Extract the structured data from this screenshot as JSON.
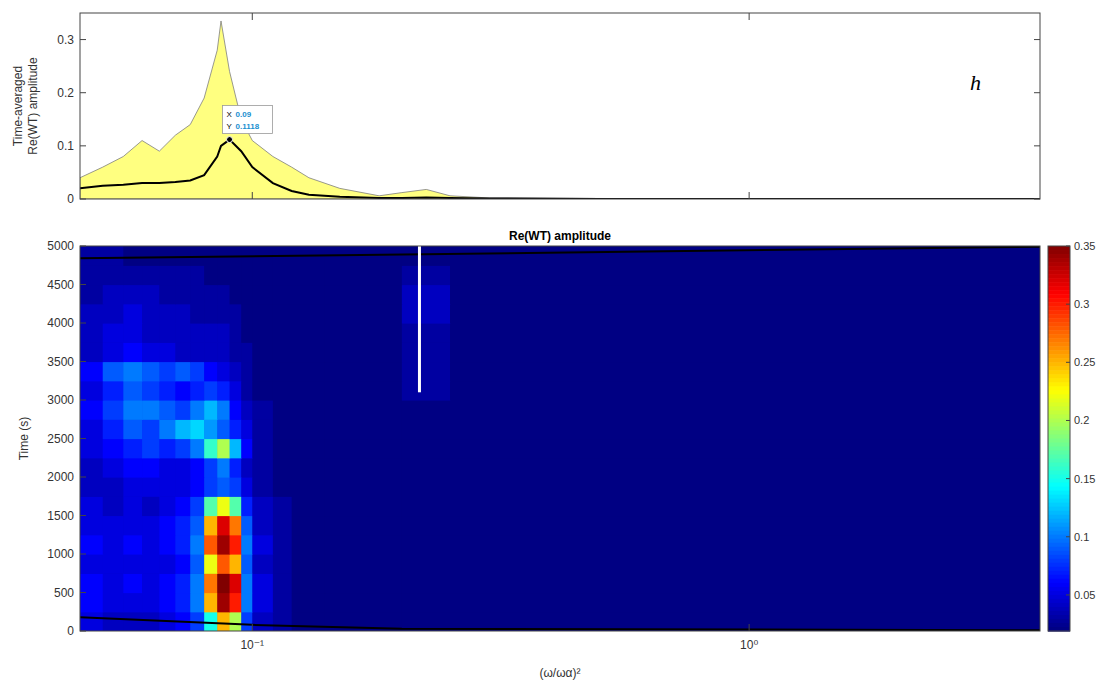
{
  "chart_data": [
    {
      "type": "area",
      "panel_label": "h",
      "y_label": "Time-averaged Re(WT) amplitude",
      "log": "x",
      "tick_labels": "y",
      "xlim": [
        0.045,
        3.85
      ],
      "ylim": [
        0,
        0.35
      ],
      "xticks": [
        {
          "value": 0.1,
          "label": "10⁻¹"
        },
        {
          "value": 1,
          "label": "10⁰"
        }
      ],
      "yticks": [
        0,
        0.1,
        0.2,
        0.3
      ],
      "x": [
        0.045,
        0.05,
        0.055,
        0.06,
        0.065,
        0.07,
        0.075,
        0.08,
        0.085,
        0.0865,
        0.09,
        0.095,
        0.1,
        0.11,
        0.12,
        0.13,
        0.15,
        0.18,
        0.2,
        0.224,
        0.25,
        0.3,
        0.5,
        1,
        2,
        3.85
      ],
      "series": [
        {
          "type": "area",
          "color": "#ffff80",
          "values": [
            0.04,
            0.06,
            0.08,
            0.11,
            0.09,
            0.12,
            0.14,
            0.19,
            0.28,
            0.335,
            0.24,
            0.15,
            0.11,
            0.08,
            0.06,
            0.04,
            0.02,
            0.006,
            0.012,
            0.018,
            0.006,
            0.002,
            0.001,
            0,
            0,
            0
          ]
        },
        {
          "type": "line",
          "color": "#000000",
          "values": [
            0.02,
            0.025,
            0.027,
            0.03,
            0.03,
            0.032,
            0.035,
            0.045,
            0.08,
            0.1,
            0.1118,
            0.09,
            0.06,
            0.03,
            0.015,
            0.008,
            0.004,
            0.002,
            0.002,
            0.003,
            0.002,
            0.001,
            0,
            0,
            0,
            0
          ]
        }
      ],
      "annotation": {
        "x": 0.09,
        "y": 0.1118,
        "x_text": "X",
        "y_text": "Y"
      }
    },
    {
      "type": "heatmap",
      "title": "Re(WT) amplitude",
      "x_label": "(ω/ωα)²",
      "y_label": "Time (s)",
      "log": "x",
      "xlim": [
        0.045,
        3.85
      ],
      "ylim": [
        0,
        5000
      ],
      "xticks": [
        {
          "value": 0.1,
          "label": "10⁻¹"
        },
        {
          "value": 1,
          "label": "10⁰"
        }
      ],
      "yticks": [
        0,
        500,
        1000,
        1500,
        2000,
        2500,
        3000,
        3500,
        4000,
        4500,
        5000
      ],
      "x_edges": [
        0.045,
        0.05,
        0.055,
        0.06,
        0.065,
        0.07,
        0.075,
        0.08,
        0.085,
        0.09,
        0.095,
        0.1,
        0.11,
        0.12,
        0.14,
        0.17,
        0.2,
        0.25,
        3.85
      ],
      "y_edges": [
        0,
        250,
        500,
        750,
        1000,
        1250,
        1500,
        1750,
        2000,
        2250,
        2500,
        2750,
        3000,
        3250,
        3500,
        3750,
        4000,
        4250,
        4500,
        4750,
        5000
      ],
      "cells": [
        [
          0.05,
          0.04,
          0.04,
          0.04,
          0.05,
          0.06,
          0.08,
          0.15,
          0.25,
          0.2,
          0.08,
          0.04,
          0.03,
          0.02,
          0.02,
          0.02,
          0.02,
          0.02
        ],
        [
          0.06,
          0.05,
          0.05,
          0.05,
          0.06,
          0.07,
          0.1,
          0.25,
          0.34,
          0.3,
          0.1,
          0.05,
          0.03,
          0.02,
          0.02,
          0.02,
          0.02,
          0.02
        ],
        [
          0.06,
          0.05,
          0.06,
          0.05,
          0.06,
          0.07,
          0.1,
          0.27,
          0.35,
          0.32,
          0.1,
          0.05,
          0.03,
          0.02,
          0.02,
          0.02,
          0.02,
          0.02
        ],
        [
          0.05,
          0.05,
          0.05,
          0.05,
          0.05,
          0.06,
          0.09,
          0.22,
          0.28,
          0.25,
          0.09,
          0.04,
          0.03,
          0.02,
          0.02,
          0.02,
          0.02,
          0.02
        ],
        [
          0.06,
          0.05,
          0.06,
          0.05,
          0.06,
          0.07,
          0.1,
          0.28,
          0.34,
          0.3,
          0.1,
          0.05,
          0.03,
          0.02,
          0.02,
          0.02,
          0.02,
          0.02
        ],
        [
          0.05,
          0.05,
          0.05,
          0.05,
          0.06,
          0.07,
          0.09,
          0.25,
          0.32,
          0.27,
          0.09,
          0.04,
          0.03,
          0.02,
          0.02,
          0.02,
          0.02,
          0.02
        ],
        [
          0.05,
          0.04,
          0.05,
          0.04,
          0.05,
          0.06,
          0.08,
          0.17,
          0.22,
          0.17,
          0.07,
          0.04,
          0.03,
          0.02,
          0.02,
          0.02,
          0.02,
          0.02
        ],
        [
          0.04,
          0.04,
          0.05,
          0.05,
          0.05,
          0.05,
          0.06,
          0.08,
          0.09,
          0.08,
          0.05,
          0.03,
          0.02,
          0.02,
          0.02,
          0.02,
          0.02,
          0.02
        ],
        [
          0.04,
          0.05,
          0.06,
          0.06,
          0.05,
          0.05,
          0.06,
          0.08,
          0.1,
          0.07,
          0.04,
          0.03,
          0.02,
          0.02,
          0.02,
          0.02,
          0.02,
          0.02
        ],
        [
          0.05,
          0.06,
          0.07,
          0.08,
          0.07,
          0.08,
          0.1,
          0.16,
          0.2,
          0.12,
          0.06,
          0.03,
          0.02,
          0.02,
          0.02,
          0.02,
          0.02,
          0.02
        ],
        [
          0.05,
          0.07,
          0.09,
          0.08,
          0.1,
          0.12,
          0.13,
          0.11,
          0.09,
          0.07,
          0.05,
          0.03,
          0.02,
          0.02,
          0.02,
          0.02,
          0.02,
          0.02
        ],
        [
          0.06,
          0.08,
          0.1,
          0.1,
          0.09,
          0.08,
          0.1,
          0.12,
          0.1,
          0.06,
          0.04,
          0.03,
          0.02,
          0.02,
          0.02,
          0.02,
          0.02,
          0.02
        ],
        [
          0.05,
          0.07,
          0.09,
          0.08,
          0.07,
          0.06,
          0.07,
          0.08,
          0.07,
          0.05,
          0.03,
          0.02,
          0.02,
          0.02,
          0.02,
          0.02,
          0.03,
          0.02
        ],
        [
          0.06,
          0.09,
          0.1,
          0.09,
          0.08,
          0.09,
          0.08,
          0.06,
          0.05,
          0.04,
          0.03,
          0.02,
          0.02,
          0.02,
          0.02,
          0.02,
          0.03,
          0.02
        ],
        [
          0.04,
          0.05,
          0.06,
          0.05,
          0.05,
          0.04,
          0.04,
          0.04,
          0.04,
          0.03,
          0.03,
          0.02,
          0.02,
          0.02,
          0.02,
          0.02,
          0.03,
          0.02
        ],
        [
          0.04,
          0.05,
          0.05,
          0.04,
          0.04,
          0.04,
          0.04,
          0.04,
          0.04,
          0.03,
          0.02,
          0.02,
          0.02,
          0.02,
          0.02,
          0.02,
          0.03,
          0.02
        ],
        [
          0.04,
          0.04,
          0.05,
          0.04,
          0.04,
          0.04,
          0.03,
          0.03,
          0.03,
          0.03,
          0.02,
          0.02,
          0.02,
          0.02,
          0.02,
          0.02,
          0.04,
          0.02
        ],
        [
          0.03,
          0.04,
          0.04,
          0.04,
          0.03,
          0.03,
          0.03,
          0.03,
          0.03,
          0.02,
          0.02,
          0.02,
          0.02,
          0.02,
          0.02,
          0.02,
          0.04,
          0.02
        ],
        [
          0.03,
          0.03,
          0.03,
          0.03,
          0.03,
          0.03,
          0.03,
          0.02,
          0.02,
          0.02,
          0.02,
          0.02,
          0.02,
          0.02,
          0.02,
          0.02,
          0.03,
          0.02
        ],
        [
          0.03,
          0.03,
          0.02,
          0.02,
          0.02,
          0.02,
          0.02,
          0.02,
          0.02,
          0.02,
          0.02,
          0.02,
          0.02,
          0.02,
          0.02,
          0.02,
          0.02,
          0.02
        ]
      ],
      "color_range": [
        0.019,
        0.35
      ],
      "color_ticks": [
        0.05,
        0.1,
        0.15,
        0.2,
        0.25,
        0.3,
        0.35
      ],
      "boundaries": [
        {
          "color": "#000000",
          "x": [
            0.045,
            0.1,
            0.2,
            3.85
          ],
          "y": [
            180,
            80,
            30,
            10
          ]
        },
        {
          "color": "#000000",
          "x": [
            0.045,
            3.85
          ],
          "y": [
            4840,
            4990
          ]
        }
      ],
      "marker_line": {
        "color": "#ffffff",
        "x": 0.217,
        "y": [
          3100,
          5000
        ]
      }
    }
  ]
}
